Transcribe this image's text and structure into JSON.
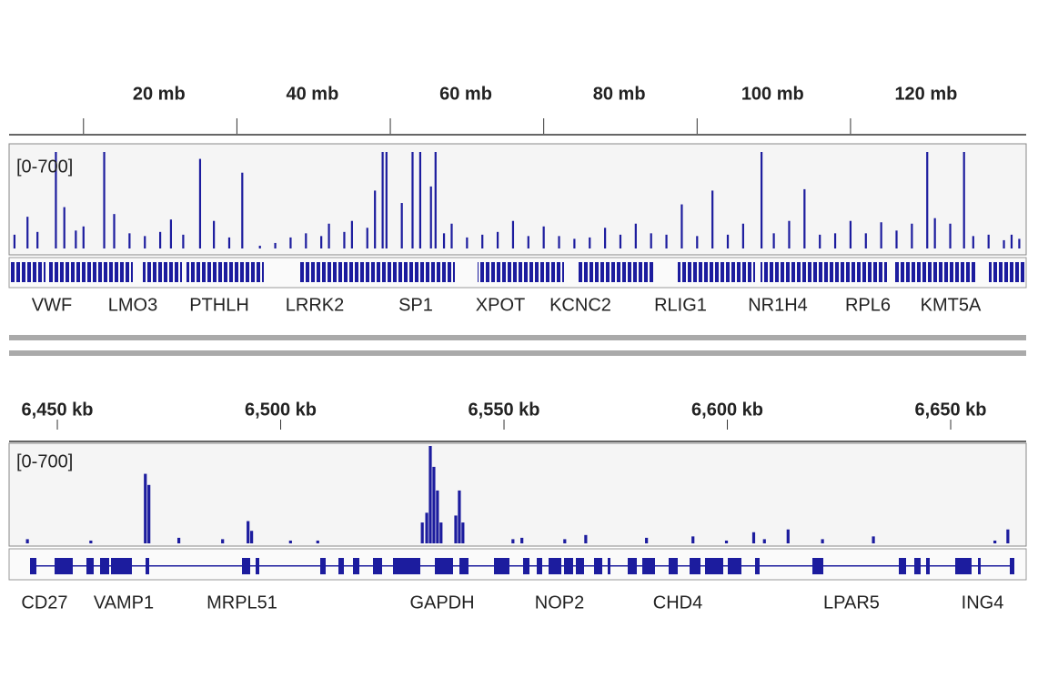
{
  "chart_data": [
    {
      "type": "coverage",
      "track_range": "[0-700]",
      "color": "#1c1c9e",
      "xlim": [
        10.3,
        142.9
      ],
      "ylim": [
        0,
        700
      ],
      "xticks": [
        {
          "value": 20,
          "label": "20 mb"
        },
        {
          "value": 40,
          "label": "40 mb"
        },
        {
          "value": 60,
          "label": "60 mb"
        },
        {
          "value": 80,
          "label": "80 mb"
        },
        {
          "value": 100,
          "label": "100 mb"
        },
        {
          "value": 120,
          "label": "120 mb"
        }
      ],
      "x": [
        11,
        12.7,
        14,
        16.4,
        17.5,
        19,
        20,
        22.7,
        24,
        26,
        28,
        30,
        31.4,
        33,
        35.2,
        37,
        39,
        40.7,
        43,
        45,
        47,
        49,
        51,
        52,
        54,
        55,
        57,
        58,
        59,
        59.5,
        61.5,
        62.9,
        63.9,
        65.3,
        65.9,
        67,
        68,
        70,
        72,
        74,
        76,
        78,
        80,
        82,
        84,
        86,
        88,
        90,
        92,
        94,
        96,
        98,
        100,
        102,
        104,
        106,
        108.4,
        110,
        112,
        114,
        116,
        118,
        120,
        122,
        124,
        126,
        128,
        130,
        131,
        133,
        134.8,
        136,
        138,
        140,
        141,
        142
      ],
      "values": [
        100,
        230,
        120,
        700,
        300,
        130,
        160,
        700,
        250,
        110,
        90,
        120,
        210,
        100,
        650,
        200,
        80,
        550,
        20,
        40,
        80,
        110,
        90,
        180,
        120,
        200,
        150,
        420,
        700,
        700,
        330,
        700,
        700,
        450,
        700,
        110,
        180,
        80,
        100,
        120,
        200,
        90,
        160,
        90,
        70,
        80,
        150,
        100,
        180,
        110,
        100,
        320,
        90,
        420,
        100,
        180,
        700,
        110,
        200,
        430,
        100,
        110,
        200,
        110,
        190,
        130,
        180,
        700,
        220,
        180,
        700,
        90,
        100,
        60,
        100,
        70
      ],
      "genes": [
        "VWF",
        "LMO3",
        "PTHLH",
        "LRRK2",
        "SP1",
        "XPOT",
        "KCNC2",
        "RLIG1",
        "NR1H4",
        "RPL6",
        "KMT5A"
      ]
    },
    {
      "type": "coverage",
      "track_range": "[0-700]",
      "color": "#1c1c9e",
      "xlim": [
        6439.2,
        6666.9
      ],
      "ylim": [
        0,
        700
      ],
      "xticks": [
        {
          "value": 6450,
          "label": "6,450 kb"
        },
        {
          "value": 6500,
          "label": "6,500 kb"
        },
        {
          "value": 6550,
          "label": "6,550 kb"
        },
        {
          "value": 6600,
          "label": "6,600 kb"
        },
        {
          "value": 6650,
          "label": "6,650 kb"
        }
      ],
      "x": [
        6443.3,
        6457.5,
        6469.7,
        6470.5,
        6477.2,
        6487.0,
        6492.7,
        6493.5,
        6502.2,
        6508.3,
        6531.7,
        6532.7,
        6533.5,
        6534.3,
        6535.1,
        6535.9,
        6539.2,
        6540.0,
        6540.8,
        6552.0,
        6554.0,
        6563.6,
        6568.3,
        6581.9,
        6592.3,
        6599.8,
        6605.9,
        6608.3,
        6613.6,
        6621.3,
        6632.7,
        6659.9,
        6662.8
      ],
      "values": [
        30,
        20,
        500,
        420,
        40,
        30,
        160,
        90,
        20,
        20,
        150,
        220,
        700,
        550,
        380,
        150,
        200,
        380,
        150,
        30,
        40,
        30,
        60,
        40,
        50,
        20,
        80,
        30,
        100,
        30,
        50,
        20,
        100
      ],
      "genes": [
        "CD27",
        "VAMP1",
        "MRPL51",
        "GAPDH",
        "NOP2",
        "CHD4",
        "LPAR5",
        "ING4"
      ]
    }
  ]
}
